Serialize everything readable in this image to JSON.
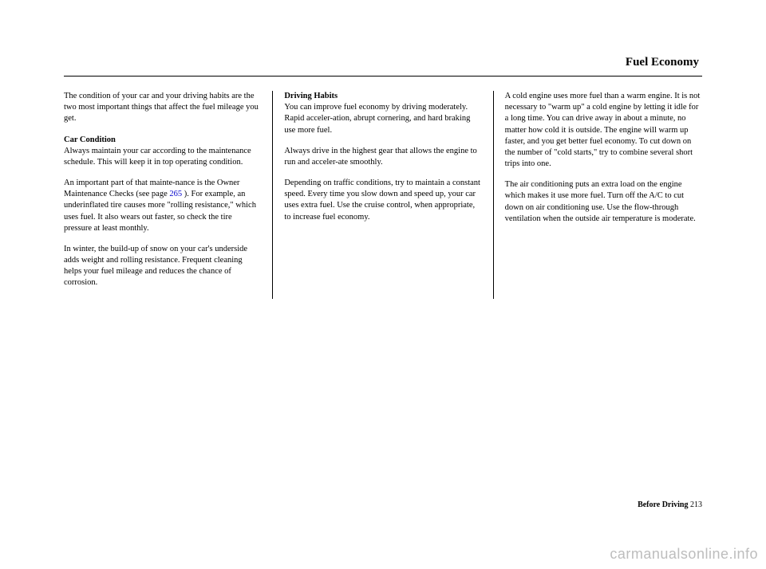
{
  "header": "Fuel Economy",
  "col1": {
    "p1": "The condition of your car and your driving habits are the two most important things that affect the fuel mileage you get.",
    "sub1": "Car Condition",
    "p2": "Always maintain your car according to the maintenance schedule. This will keep it in top operating condition.",
    "p3a": "An important part of that mainte-nance is the Owner Maintenance Checks (see page ",
    "p3link": "265",
    "p3b": " ). For example, an underinflated tire causes more \"rolling resistance,\" which uses fuel. It also wears out faster, so check the tire pressure at least monthly.",
    "p4": "In winter, the build-up of snow on your car's underside adds weight and rolling resistance. Frequent cleaning helps your fuel mileage and reduces the chance of corrosion."
  },
  "col2": {
    "sub1": "Driving Habits",
    "p1": "You can improve fuel economy by driving moderately. Rapid acceler-ation, abrupt cornering, and hard braking use more fuel.",
    "p2": "Always drive in the highest gear that allows the engine to run and acceler-ate smoothly.",
    "p3": "Depending on traffic conditions, try to maintain a constant speed. Every time you slow down and speed up, your car uses extra fuel. Use the cruise control, when appropriate, to increase fuel economy."
  },
  "col3": {
    "p1": "A cold engine uses more fuel than a warm engine. It is not necessary to \"warm up\" a cold engine by letting it idle for a long time. You can drive away in about a minute, no matter how cold it is outside. The engine will warm up faster, and you get better fuel economy. To cut down on the number of \"cold starts,\" try to combine several short trips into one.",
    "p2": "The air conditioning puts an extra load on the engine which makes it use more fuel. Turn off the A/C to cut down on air conditioning use. Use the flow-through ventilation when the outside air temperature is moderate."
  },
  "footer": {
    "label": "Before Driving",
    "page": "213"
  },
  "watermark": "carmanualsonline.info"
}
